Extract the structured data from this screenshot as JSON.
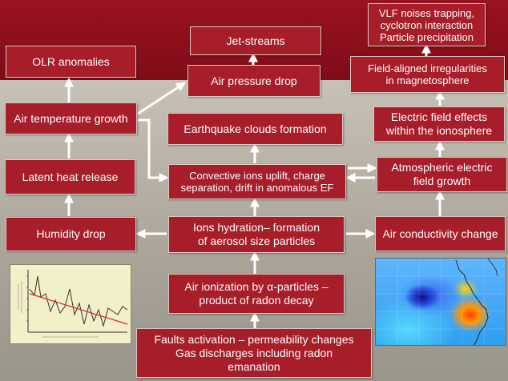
{
  "boxes": {
    "vlf": "VLF noises trapping,\ncyclotron interaction\nParticle precipitation",
    "jet_streams": "Jet-streams",
    "olr": "OLR anomalies",
    "air_pressure": "Air pressure drop",
    "field_aligned": "Field-aligned irregularities\nin magnetosphere",
    "air_temp": "Air temperature growth",
    "eq_clouds": "Earthquake clouds formation",
    "electric_field": "Electric field effects\nwithin the ionosphere",
    "latent_heat": "Latent heat release",
    "convective": "Convective ions uplift, charge\nseparation, drift in anomalous EF",
    "atmospheric": "Atmospheric electric\nfield growth",
    "humidity": "Humidity drop",
    "ions_hydration": "Ions hydration– formation\nof aerosol size particles",
    "air_conductivity": "Air conductivity change",
    "air_ionization": "Air ionization by α-particles –\nproduct of radon decay",
    "faults": "Faults activation – permeability changes\nGas discharges including radon\nemanation"
  },
  "colors": {
    "box_fill": "#a71d2a",
    "top_band": "#8a0f1c",
    "background": "#b3ada2",
    "arrow": "#ffffff"
  },
  "insets": {
    "left_plot": "line-plot-thumbnail",
    "right_map": "anomaly-map-thumbnail"
  }
}
